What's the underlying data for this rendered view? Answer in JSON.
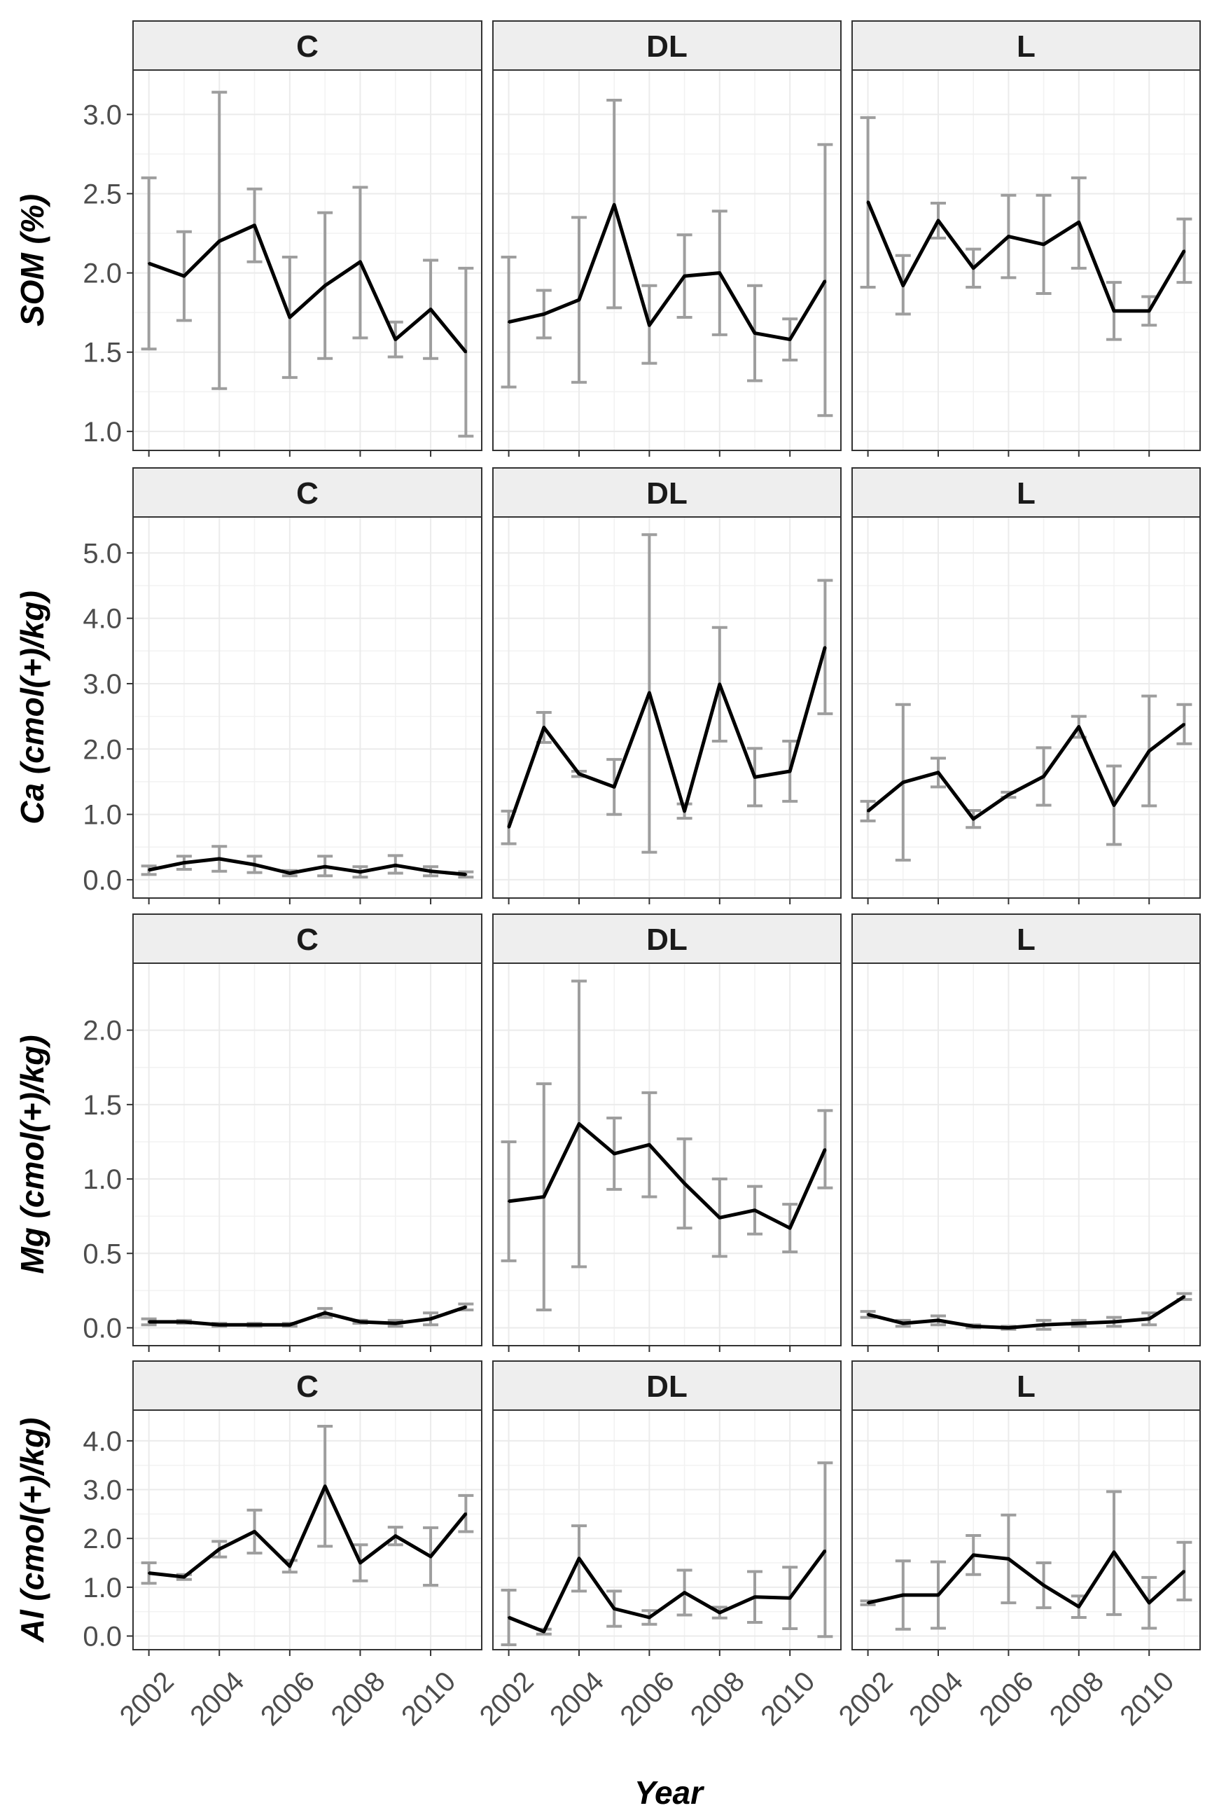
{
  "chart_data": {
    "type": "line",
    "xlabel": "Year",
    "x": [
      2002,
      2003,
      2004,
      2005,
      2006,
      2007,
      2008,
      2009,
      2010,
      2011
    ],
    "x_tick_labels": [
      "2002",
      "2004",
      "2006",
      "2008",
      "2010"
    ],
    "facets": [
      "C",
      "DL",
      "L"
    ],
    "colors": {
      "line": "#000000",
      "error_bar": "#9e9e9e",
      "strip_fill": "#eeeeee",
      "grid": "#ebebeb"
    },
    "rows": [
      {
        "ylabel": "SOM (%)",
        "ylim": [
          0.88,
          3.28
        ],
        "y_ticks": [
          1.0,
          1.5,
          2.0,
          2.5,
          3.0
        ],
        "y_tick_labels": [
          "1.0",
          "1.5",
          "2.0",
          "2.5",
          "3.0"
        ],
        "panels": [
          {
            "facet": "C",
            "values": [
              2.06,
              1.98,
              2.2,
              2.3,
              1.72,
              1.92,
              2.07,
              1.58,
              1.77,
              1.5
            ],
            "err_low": [
              1.52,
              1.7,
              1.27,
              2.07,
              1.34,
              1.46,
              1.59,
              1.47,
              1.46,
              0.97
            ],
            "err_high": [
              2.6,
              2.26,
              3.14,
              2.53,
              2.1,
              2.38,
              2.54,
              1.69,
              2.08,
              2.03
            ]
          },
          {
            "facet": "DL",
            "values": [
              1.69,
              1.74,
              1.83,
              2.43,
              1.67,
              1.98,
              2.0,
              1.62,
              1.58,
              1.95
            ],
            "err_low": [
              1.28,
              1.59,
              1.31,
              1.78,
              1.43,
              1.72,
              1.61,
              1.32,
              1.45,
              1.1
            ],
            "err_high": [
              2.1,
              1.89,
              2.35,
              3.09,
              1.92,
              2.24,
              2.39,
              1.92,
              1.71,
              2.81
            ]
          },
          {
            "facet": "L",
            "values": [
              2.45,
              1.92,
              2.33,
              2.03,
              2.23,
              2.18,
              2.32,
              1.76,
              1.76,
              2.14
            ],
            "err_low": [
              1.91,
              1.74,
              2.22,
              1.91,
              1.97,
              1.87,
              2.03,
              1.58,
              1.67,
              1.94
            ],
            "err_high": [
              2.98,
              2.11,
              2.44,
              2.15,
              2.49,
              2.49,
              2.6,
              1.94,
              1.85,
              2.34
            ]
          }
        ]
      },
      {
        "ylabel": "Ca (cmol(+)/kg)",
        "ylim": [
          -0.28,
          5.55
        ],
        "y_ticks": [
          0.0,
          1.0,
          2.0,
          3.0,
          4.0,
          5.0
        ],
        "y_tick_labels": [
          "0.0",
          "1.0",
          "2.0",
          "3.0",
          "4.0",
          "5.0"
        ],
        "panels": [
          {
            "facet": "C",
            "values": [
              0.15,
              0.26,
              0.32,
              0.23,
              0.1,
              0.2,
              0.12,
              0.22,
              0.13,
              0.08
            ],
            "err_low": [
              0.08,
              0.16,
              0.13,
              0.11,
              0.06,
              0.06,
              0.04,
              0.1,
              0.06,
              0.04
            ],
            "err_high": [
              0.21,
              0.36,
              0.51,
              0.36,
              0.14,
              0.36,
              0.2,
              0.37,
              0.2,
              0.12
            ]
          },
          {
            "facet": "DL",
            "values": [
              0.8,
              2.33,
              1.62,
              1.42,
              2.86,
              1.05,
              2.99,
              1.57,
              1.66,
              3.56
            ],
            "err_low": [
              0.55,
              2.1,
              1.58,
              1.0,
              0.42,
              0.94,
              2.12,
              1.13,
              1.2,
              2.54
            ],
            "err_high": [
              1.05,
              2.56,
              1.66,
              1.84,
              5.28,
              1.16,
              3.86,
              2.01,
              2.12,
              4.58
            ]
          },
          {
            "facet": "L",
            "values": [
              1.05,
              1.49,
              1.64,
              0.93,
              1.3,
              1.58,
              2.34,
              1.14,
              1.97,
              2.38
            ],
            "err_low": [
              0.9,
              0.3,
              1.42,
              0.8,
              1.26,
              1.14,
              2.18,
              0.54,
              1.13,
              2.08
            ],
            "err_high": [
              1.2,
              2.68,
              1.86,
              1.06,
              1.34,
              2.02,
              2.5,
              1.74,
              2.81,
              2.68
            ]
          }
        ]
      },
      {
        "ylabel": "Mg (cmol(+)/kg)",
        "ylim": [
          -0.12,
          2.45
        ],
        "y_ticks": [
          0.0,
          0.5,
          1.0,
          1.5,
          2.0
        ],
        "y_tick_labels": [
          "0.0",
          "0.5",
          "1.0",
          "1.5",
          "2.0"
        ],
        "panels": [
          {
            "facet": "C",
            "values": [
              0.04,
              0.04,
              0.02,
              0.02,
              0.02,
              0.1,
              0.04,
              0.03,
              0.06,
              0.14
            ],
            "err_low": [
              0.02,
              0.03,
              0.01,
              0.01,
              0.01,
              0.07,
              0.03,
              0.01,
              0.02,
              0.12
            ],
            "err_high": [
              0.06,
              0.05,
              0.03,
              0.03,
              0.03,
              0.13,
              0.05,
              0.05,
              0.1,
              0.16
            ]
          },
          {
            "facet": "DL",
            "values": [
              0.85,
              0.88,
              1.37,
              1.17,
              1.23,
              0.97,
              0.74,
              0.79,
              0.67,
              1.2
            ],
            "err_low": [
              0.45,
              0.12,
              0.41,
              0.93,
              0.88,
              0.67,
              0.48,
              0.63,
              0.51,
              0.94
            ],
            "err_high": [
              1.25,
              1.64,
              2.33,
              1.41,
              1.58,
              1.27,
              1.0,
              0.95,
              0.83,
              1.46
            ]
          },
          {
            "facet": "L",
            "values": [
              0.09,
              0.03,
              0.05,
              0.01,
              0.0,
              0.02,
              0.03,
              0.04,
              0.06,
              0.21
            ],
            "err_low": [
              0.07,
              0.01,
              0.02,
              0.0,
              -0.01,
              -0.01,
              0.01,
              0.01,
              0.02,
              0.19
            ],
            "err_high": [
              0.11,
              0.05,
              0.08,
              0.02,
              0.01,
              0.05,
              0.05,
              0.07,
              0.1,
              0.23
            ]
          }
        ]
      },
      {
        "ylabel": "Al (cmol(+)/kg)",
        "ylim": [
          -0.28,
          4.63
        ],
        "y_ticks": [
          0.0,
          1.0,
          2.0,
          3.0,
          4.0
        ],
        "y_tick_labels": [
          "0.0",
          "1.0",
          "2.0",
          "3.0",
          "4.0"
        ],
        "panels": [
          {
            "facet": "C",
            "values": [
              1.29,
              1.21,
              1.78,
              2.14,
              1.43,
              3.07,
              1.5,
              2.05,
              1.63,
              2.51
            ],
            "err_low": [
              1.08,
              1.16,
              1.62,
              1.7,
              1.31,
              1.84,
              1.13,
              1.87,
              1.04,
              2.14
            ],
            "err_high": [
              1.5,
              1.26,
              1.94,
              2.58,
              1.55,
              4.3,
              1.87,
              2.23,
              2.22,
              2.88
            ]
          },
          {
            "facet": "DL",
            "values": [
              0.38,
              0.09,
              1.59,
              0.56,
              0.38,
              0.89,
              0.48,
              0.8,
              0.78,
              1.75
            ],
            "err_low": [
              -0.18,
              0.04,
              0.92,
              0.2,
              0.24,
              0.43,
              0.37,
              0.28,
              0.15,
              -0.01
            ],
            "err_high": [
              0.94,
              0.14,
              2.26,
              0.92,
              0.52,
              1.35,
              0.59,
              1.32,
              1.41,
              3.55
            ]
          },
          {
            "facet": "L",
            "values": [
              0.68,
              0.84,
              0.84,
              1.66,
              1.58,
              1.04,
              0.6,
              1.72,
              0.68,
              1.33
            ],
            "err_low": [
              0.64,
              0.14,
              0.16,
              1.26,
              0.68,
              0.58,
              0.38,
              0.44,
              0.16,
              0.74
            ],
            "err_high": [
              0.72,
              1.54,
              1.52,
              2.06,
              2.48,
              1.5,
              0.82,
              2.96,
              1.2,
              1.92
            ]
          }
        ]
      }
    ]
  }
}
